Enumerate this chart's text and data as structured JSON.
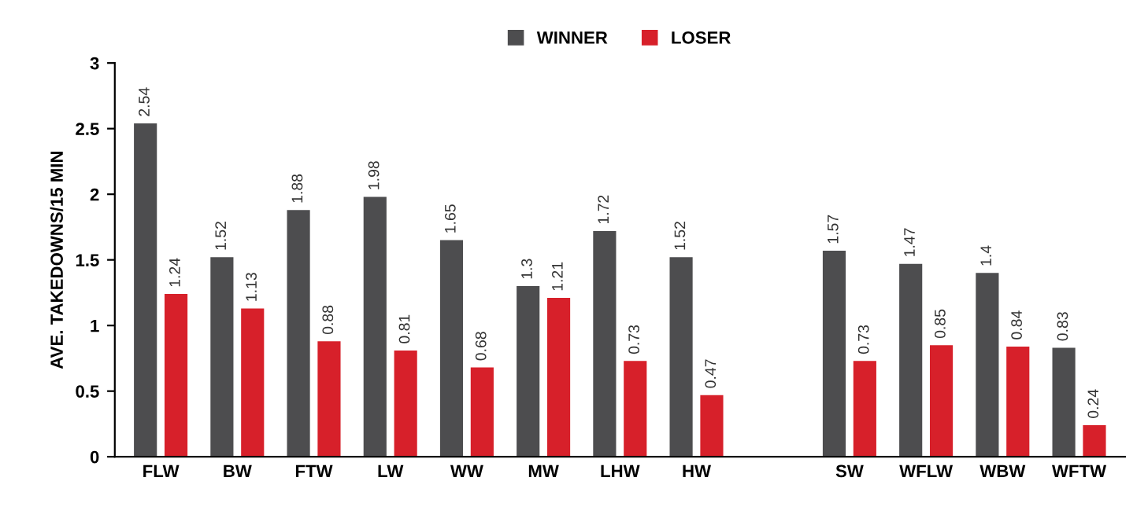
{
  "chart_data": {
    "type": "bar",
    "ylabel": "AVE. TAKEDOWNS/15 MIN",
    "categories": [
      "FLW",
      "BW",
      "FTW",
      "LW",
      "WW",
      "MW",
      "LHW",
      "HW",
      null,
      "SW",
      "WFLW",
      "WBW",
      "WFTW"
    ],
    "series": [
      {
        "name": "WINNER",
        "color": "#4d4d4f",
        "values": [
          2.54,
          1.52,
          1.88,
          1.98,
          1.65,
          1.3,
          1.72,
          1.52,
          null,
          1.57,
          1.47,
          1.4,
          0.83
        ]
      },
      {
        "name": "LOSER",
        "color": "#d7202a",
        "values": [
          1.24,
          1.13,
          0.88,
          0.81,
          0.68,
          1.21,
          0.73,
          0.47,
          null,
          0.73,
          0.85,
          0.84,
          0.24
        ]
      }
    ],
    "ylim": [
      0,
      3
    ],
    "yticks": [
      0,
      0.5,
      1,
      1.5,
      2,
      2.5,
      3
    ],
    "grid": false,
    "legend": "top",
    "data_labels": true
  }
}
